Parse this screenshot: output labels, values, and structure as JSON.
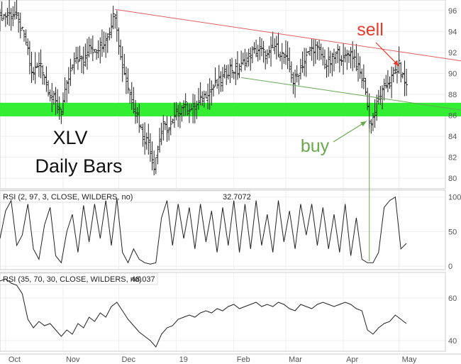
{
  "chart_data": [
    {
      "type": "ohlc",
      "panel": "price",
      "label_line1": "XLV",
      "label_line2": "Daily Bars",
      "ylim": [
        79,
        97
      ],
      "yticks": [
        80,
        82,
        84,
        86,
        88,
        90,
        92,
        94,
        96
      ],
      "x_tick_labels": [
        {
          "label": "Oct",
          "day": 3
        },
        {
          "label": "Nov",
          "day": 34
        },
        {
          "label": "Dec",
          "day": 64
        },
        {
          "label": "19",
          "day": 95
        },
        {
          "label": "Feb",
          "day": 126
        },
        {
          "label": "Mar",
          "day": 154
        },
        {
          "label": "Apr",
          "day": 185
        },
        {
          "label": "May",
          "day": 215
        }
      ],
      "closes": [
        {
          "day": 0,
          "close": 95.4
        },
        {
          "day": 8,
          "close": 95.8
        },
        {
          "day": 14,
          "close": 93.0
        },
        {
          "day": 17,
          "close": 90.0
        },
        {
          "day": 22,
          "close": 91.0
        },
        {
          "day": 26,
          "close": 88.5
        },
        {
          "day": 30,
          "close": 87.2
        },
        {
          "day": 33,
          "close": 86.6
        },
        {
          "day": 37,
          "close": 89.5
        },
        {
          "day": 41,
          "close": 91.5
        },
        {
          "day": 45,
          "close": 91.0
        },
        {
          "day": 48,
          "close": 93.0
        },
        {
          "day": 51,
          "close": 92.0
        },
        {
          "day": 55,
          "close": 92.5
        },
        {
          "day": 59,
          "close": 94.2
        },
        {
          "day": 62,
          "close": 96.0
        },
        {
          "day": 65,
          "close": 91.5
        },
        {
          "day": 70,
          "close": 88.0
        },
        {
          "day": 74,
          "close": 86.0
        },
        {
          "day": 77,
          "close": 84.0
        },
        {
          "day": 80,
          "close": 83.5
        },
        {
          "day": 83,
          "close": 81.2
        },
        {
          "day": 85,
          "close": 83.0
        },
        {
          "day": 88,
          "close": 85.0
        },
        {
          "day": 91,
          "close": 84.6
        },
        {
          "day": 95,
          "close": 86.0
        },
        {
          "day": 99,
          "close": 87.0
        },
        {
          "day": 104,
          "close": 86.5
        },
        {
          "day": 108,
          "close": 87.4
        },
        {
          "day": 112,
          "close": 88.3
        },
        {
          "day": 116,
          "close": 88.8
        },
        {
          "day": 120,
          "close": 89.5
        },
        {
          "day": 124,
          "close": 90.5
        },
        {
          "day": 128,
          "close": 90.2
        },
        {
          "day": 132,
          "close": 91.2
        },
        {
          "day": 136,
          "close": 92.0
        },
        {
          "day": 140,
          "close": 92.3
        },
        {
          "day": 144,
          "close": 91.6
        },
        {
          "day": 148,
          "close": 92.6
        },
        {
          "day": 152,
          "close": 91.8
        },
        {
          "day": 155,
          "close": 91.0
        },
        {
          "day": 158,
          "close": 89.2
        },
        {
          "day": 161,
          "close": 90.2
        },
        {
          "day": 164,
          "close": 91.2
        },
        {
          "day": 167,
          "close": 92.2
        },
        {
          "day": 170,
          "close": 92.5
        },
        {
          "day": 173,
          "close": 91.8
        },
        {
          "day": 176,
          "close": 90.8
        },
        {
          "day": 179,
          "close": 91.2
        },
        {
          "day": 182,
          "close": 92.0
        },
        {
          "day": 185,
          "close": 91.3
        },
        {
          "day": 188,
          "close": 92.1
        },
        {
          "day": 191,
          "close": 91.5
        },
        {
          "day": 194,
          "close": 90.0
        },
        {
          "day": 197,
          "close": 88.5
        },
        {
          "day": 199,
          "close": 85.2
        },
        {
          "day": 201,
          "close": 85.8
        },
        {
          "day": 203,
          "close": 87.0
        },
        {
          "day": 205,
          "close": 87.8
        },
        {
          "day": 207,
          "close": 88.6
        },
        {
          "day": 209,
          "close": 89.2
        },
        {
          "day": 211,
          "close": 89.5
        },
        {
          "day": 213,
          "close": 90.0
        },
        {
          "day": 215,
          "close": 90.8
        },
        {
          "day": 217,
          "close": 89.6
        },
        {
          "day": 219,
          "close": 88.8
        }
      ],
      "support_band": {
        "low": 85.9,
        "high": 87.2,
        "color": "#33ee33"
      },
      "lines": [
        {
          "name": "upper trendline",
          "from": {
            "day": 62,
            "value": 96.1
          },
          "to": {
            "day": 240,
            "value": 91.2
          },
          "color": "#e06060"
        },
        {
          "name": "lower trendline",
          "from": {
            "day": 130,
            "value": 89.6
          },
          "to": {
            "day": 240,
            "value": 86.5
          },
          "color": "#66aa55"
        }
      ],
      "annotations": [
        {
          "text": "sell",
          "color": "#e8392b",
          "arrow_to": {
            "day": 215,
            "value": 90.7
          }
        },
        {
          "text": "buy",
          "color": "#6aa84f",
          "arrow_to": {
            "day": 199,
            "value": 85.3
          }
        }
      ]
    },
    {
      "type": "line",
      "panel": "rsi-fast",
      "legend": "RSI (2, 97, 3, CLOSE, WILDERS, no)",
      "last_value": "32.7072",
      "ylim": [
        -5,
        110
      ],
      "yticks": [
        0,
        50,
        100
      ],
      "x": [
        0,
        3,
        6,
        9,
        12,
        15,
        18,
        21,
        24,
        27,
        30,
        33,
        36,
        39,
        42,
        45,
        48,
        51,
        54,
        57,
        60,
        63,
        66,
        69,
        72,
        75,
        78,
        81,
        84,
        87,
        90,
        93,
        96,
        99,
        102,
        105,
        108,
        111,
        114,
        117,
        120,
        123,
        126,
        129,
        132,
        135,
        138,
        141,
        144,
        147,
        150,
        153,
        156,
        159,
        162,
        165,
        168,
        171,
        174,
        177,
        180,
        183,
        186,
        189,
        192,
        195,
        198,
        201,
        204,
        207,
        210,
        213,
        216,
        219
      ],
      "values": [
        40,
        80,
        95,
        30,
        45,
        90,
        25,
        10,
        60,
        85,
        15,
        5,
        50,
        75,
        20,
        88,
        35,
        90,
        40,
        95,
        30,
        98,
        20,
        5,
        25,
        10,
        5,
        3,
        5,
        70,
        95,
        30,
        90,
        40,
        85,
        25,
        90,
        35,
        80,
        20,
        85,
        30,
        95,
        20,
        90,
        25,
        95,
        30,
        75,
        20,
        95,
        35,
        80,
        25,
        90,
        45,
        90,
        30,
        85,
        25,
        75,
        20,
        90,
        15,
        70,
        10,
        5,
        5,
        20,
        85,
        95,
        100,
        25,
        33
      ]
    },
    {
      "type": "line",
      "panel": "rsi-slow",
      "legend": "RSI (35, 70, 30, CLOSE, WILDERS, no)",
      "last_value": "48.037",
      "ylim": [
        35,
        72
      ],
      "yticks": [
        40,
        60
      ],
      "x": [
        0,
        3,
        6,
        9,
        12,
        15,
        18,
        21,
        24,
        27,
        30,
        33,
        36,
        39,
        42,
        45,
        48,
        51,
        54,
        57,
        60,
        63,
        66,
        69,
        72,
        75,
        78,
        81,
        84,
        87,
        90,
        93,
        96,
        99,
        102,
        105,
        108,
        111,
        114,
        117,
        120,
        123,
        126,
        129,
        132,
        135,
        138,
        141,
        144,
        147,
        150,
        153,
        156,
        159,
        162,
        165,
        168,
        171,
        174,
        177,
        180,
        183,
        186,
        189,
        192,
        195,
        198,
        201,
        204,
        207,
        210,
        213,
        216,
        219
      ],
      "values": [
        68,
        69,
        67,
        66,
        62,
        50,
        46,
        49,
        47,
        48,
        45,
        42,
        45,
        43,
        48,
        46,
        51,
        49,
        53,
        51,
        56,
        58,
        54,
        50,
        47,
        44,
        42,
        40,
        37,
        43,
        46,
        47,
        50,
        51,
        52,
        51,
        53,
        54,
        53,
        55,
        54,
        56,
        57,
        55,
        56,
        57,
        58,
        56,
        57,
        56,
        58,
        57,
        55,
        54,
        57,
        56,
        55,
        57,
        58,
        57,
        56,
        57,
        58,
        57,
        55,
        54,
        45,
        43,
        46,
        48,
        49,
        52,
        50,
        48
      ]
    }
  ]
}
